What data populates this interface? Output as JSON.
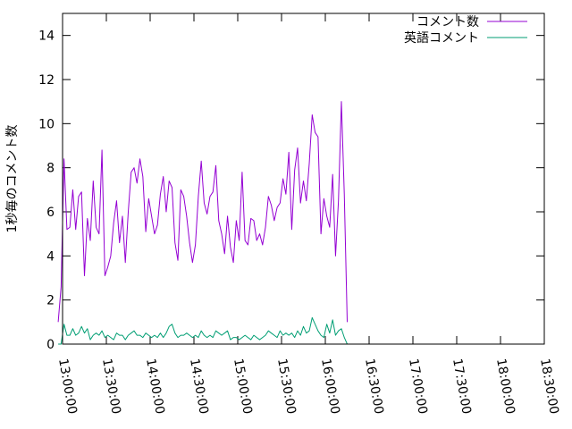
{
  "chart_data": {
    "type": "line",
    "ylabel": "1秒毎のコメント数",
    "xlabel": "",
    "title": "",
    "xlim": [
      "13:00:00",
      "18:30:00"
    ],
    "ylim": [
      0,
      15
    ],
    "x_ticks": [
      "13:00:00",
      "13:30:00",
      "14:00:00",
      "14:30:00",
      "15:00:00",
      "15:30:00",
      "16:00:00",
      "16:30:00",
      "17:00:00",
      "17:30:00",
      "18:00:00",
      "18:30:00"
    ],
    "y_ticks": [
      0,
      2,
      4,
      6,
      8,
      10,
      12,
      14
    ],
    "legend_position": "top-right",
    "grid": false,
    "x_start": "12:57:00",
    "x_step_minutes": 2,
    "series": [
      {
        "name": "コメント数",
        "color": "#9400d3",
        "values": [
          1.0,
          2.6,
          8.4,
          5.2,
          5.3,
          7.0,
          5.2,
          6.7,
          6.9,
          3.1,
          5.7,
          4.7,
          7.4,
          5.3,
          5.0,
          8.8,
          3.1,
          3.5,
          4.0,
          5.5,
          6.5,
          4.6,
          5.8,
          3.7,
          6.0,
          7.8,
          8.0,
          7.3,
          8.4,
          7.6,
          5.1,
          6.6,
          5.8,
          5.0,
          5.4,
          6.8,
          7.6,
          6.0,
          7.4,
          7.1,
          4.6,
          3.8,
          7.0,
          6.7,
          5.8,
          4.6,
          3.7,
          4.5,
          6.7,
          8.3,
          6.4,
          5.9,
          6.7,
          6.9,
          8.1,
          5.6,
          5.0,
          4.1,
          5.8,
          4.4,
          3.7,
          5.6,
          4.7,
          7.8,
          4.7,
          4.5,
          5.7,
          5.6,
          4.7,
          5.0,
          4.5,
          5.3,
          6.7,
          6.3,
          5.6,
          6.2,
          6.4,
          7.5,
          6.8,
          8.7,
          5.2,
          7.9,
          8.9,
          6.4,
          7.4,
          6.5,
          8.2,
          10.4,
          9.6,
          9.4,
          5.0,
          6.6,
          5.8,
          5.3,
          7.7,
          4.0,
          6.5,
          11.0,
          6.8,
          1.0
        ]
      },
      {
        "name": "英語コメント",
        "color": "#009e73",
        "values": [
          0.0,
          0.0,
          0.9,
          0.4,
          0.4,
          0.7,
          0.4,
          0.5,
          0.8,
          0.5,
          0.7,
          0.2,
          0.4,
          0.5,
          0.4,
          0.6,
          0.3,
          0.4,
          0.3,
          0.2,
          0.5,
          0.4,
          0.4,
          0.2,
          0.4,
          0.5,
          0.6,
          0.4,
          0.4,
          0.3,
          0.5,
          0.4,
          0.3,
          0.4,
          0.3,
          0.5,
          0.3,
          0.5,
          0.8,
          0.9,
          0.5,
          0.3,
          0.4,
          0.4,
          0.5,
          0.4,
          0.3,
          0.4,
          0.3,
          0.6,
          0.4,
          0.3,
          0.4,
          0.3,
          0.6,
          0.5,
          0.4,
          0.5,
          0.6,
          0.2,
          0.3,
          0.3,
          0.2,
          0.3,
          0.4,
          0.3,
          0.2,
          0.4,
          0.3,
          0.2,
          0.3,
          0.4,
          0.6,
          0.5,
          0.4,
          0.3,
          0.6,
          0.4,
          0.5,
          0.4,
          0.5,
          0.3,
          0.6,
          0.4,
          0.8,
          0.5,
          0.6,
          1.2,
          0.9,
          0.6,
          0.4,
          0.3,
          0.9,
          0.5,
          1.1,
          0.4,
          0.6,
          0.7,
          0.3,
          0.0
        ]
      }
    ]
  }
}
